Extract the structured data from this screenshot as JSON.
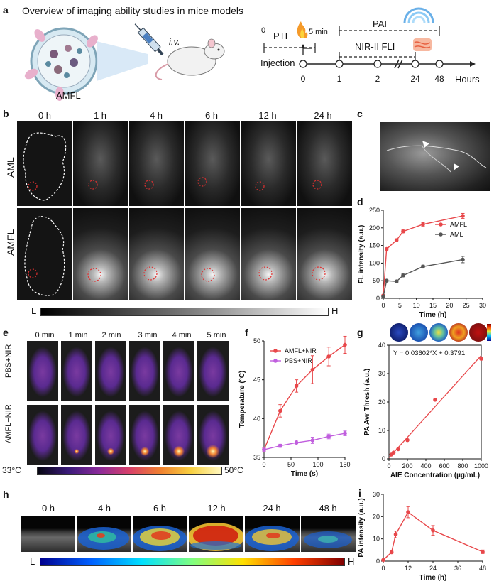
{
  "panel_letters": {
    "a": "a",
    "b": "b",
    "c": "c",
    "d": "d",
    "e": "e",
    "f": "f",
    "g": "g",
    "h": "h",
    "i": "i"
  },
  "panel_a": {
    "title": "Overview of imaging ability studies in mice models",
    "label_amfl": "AMFL",
    "label_iv": "i.v.",
    "label_pti": "PTI",
    "pti_start": "0",
    "pti_end": "5 min",
    "label_pai": "PAI",
    "label_nir": "NIR-II FLI",
    "label_injection": "Injection",
    "timeline_ticks": [
      "0",
      "1",
      "2",
      "24",
      "48"
    ],
    "label_hours": "Hours"
  },
  "panel_b": {
    "columns": [
      "0 h",
      "1 h",
      "4 h",
      "6 h",
      "12 h",
      "24 h"
    ],
    "rows": [
      "AML",
      "AMFL"
    ],
    "scale_low": "L",
    "scale_high": "H"
  },
  "panel_e": {
    "columns": [
      "0 min",
      "1 min",
      "2 min",
      "3 min",
      "4 min",
      "5 min"
    ],
    "rows": [
      "PBS+NIR",
      "AMFL+NIR"
    ],
    "scale_low": "33°C",
    "scale_high": "50°C"
  },
  "panel_h": {
    "columns": [
      "0 h",
      "4 h",
      "6 h",
      "12 h",
      "24 h",
      "48 h"
    ],
    "scale_low": "L",
    "scale_high": "H"
  },
  "colors": {
    "red": "#e8474a",
    "gray": "#555555",
    "violet": "#c05ede",
    "dark": "#222222"
  },
  "chart_data": [
    {
      "id": "d",
      "type": "line",
      "xlabel": "Time (h)",
      "ylabel": "FL intensity (a.u.)",
      "xlim": [
        0,
        30
      ],
      "ylim": [
        0,
        250
      ],
      "xticks": [
        "0",
        "5",
        "10",
        "15",
        "20",
        "25",
        "30"
      ],
      "yticks": [
        "0",
        "50",
        "100",
        "150",
        "200",
        "250"
      ],
      "legend_position": "center-right",
      "series": [
        {
          "name": "AMFL",
          "color": "#e8474a",
          "x": [
            0,
            1,
            4,
            6,
            12,
            24
          ],
          "y": [
            8,
            140,
            165,
            190,
            210,
            234
          ],
          "err": [
            2,
            3,
            4,
            4,
            5,
            7
          ]
        },
        {
          "name": "AML",
          "color": "#555555",
          "x": [
            0,
            1,
            4,
            6,
            12,
            24
          ],
          "y": [
            5,
            50,
            48,
            65,
            90,
            110
          ],
          "err": [
            1,
            3,
            3,
            4,
            4,
            9
          ]
        }
      ]
    },
    {
      "id": "f",
      "type": "line",
      "xlabel": "Time (s)",
      "ylabel": "Temperature (°C)",
      "xlim": [
        0,
        150
      ],
      "ylim": [
        35,
        50
      ],
      "xticks": [
        "0",
        "50",
        "100",
        "150"
      ],
      "yticks": [
        "35",
        "40",
        "45",
        "50"
      ],
      "legend_position": "top-left",
      "series": [
        {
          "name": "AMFL+NIR",
          "color": "#e8474a",
          "x": [
            0,
            30,
            60,
            90,
            120,
            150
          ],
          "y": [
            36.0,
            41.0,
            44.2,
            46.3,
            48.0,
            49.5
          ],
          "err": [
            0.3,
            0.8,
            0.8,
            1.8,
            1.2,
            1.1
          ]
        },
        {
          "name": "PBS+NIR",
          "color": "#c05ede",
          "x": [
            0,
            30,
            60,
            90,
            120,
            150
          ],
          "y": [
            36.0,
            36.5,
            36.9,
            37.2,
            37.7,
            38.1
          ],
          "err": [
            0.2,
            0.2,
            0.3,
            0.4,
            0.3,
            0.3
          ]
        }
      ]
    },
    {
      "id": "g",
      "type": "scatter",
      "xlabel": "AIE Concentration (µg/mL)",
      "ylabel": "PA Avr Thresh (a.u.)",
      "xlim": [
        0,
        1000
      ],
      "ylim": [
        0,
        40
      ],
      "xticks": [
        "0",
        "200",
        "400",
        "600",
        "800",
        "1000"
      ],
      "yticks": [
        "0",
        "10",
        "20",
        "30",
        "40"
      ],
      "equation": "Y = 0.03602*X + 0.3791",
      "fit": {
        "slope": 0.03602,
        "intercept": 0.3791
      },
      "points": {
        "x": [
          25,
          50,
          100,
          200,
          500,
          1000
        ],
        "y": [
          1.5,
          2.2,
          3.4,
          6.6,
          20.8,
          35.2
        ]
      },
      "color": "#e8474a"
    },
    {
      "id": "i",
      "type": "line",
      "xlabel": "Time (h)",
      "ylabel": "PA intensity (a.u.)",
      "xlim": [
        0,
        48
      ],
      "ylim": [
        0,
        30
      ],
      "xticks": [
        "0",
        "12",
        "24",
        "36",
        "48"
      ],
      "yticks": [
        "0",
        "10",
        "20",
        "30"
      ],
      "series": [
        {
          "name": "",
          "color": "#e8474a",
          "x": [
            0,
            4,
            6,
            12,
            24,
            48
          ],
          "y": [
            0.5,
            4.0,
            12.0,
            22.0,
            13.8,
            4.2
          ],
          "err": [
            0.2,
            0.5,
            1.5,
            2.5,
            2.2,
            0.8
          ]
        }
      ]
    }
  ]
}
